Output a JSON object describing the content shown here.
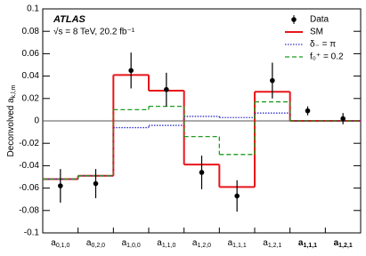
{
  "chart_data": {
    "type": "step",
    "ylabel": "Deconvolved a",
    "ylabel_sub": "k,l,m",
    "annotations": [
      "ATLAS",
      "√s = 8 TeV, 20.2 fb⁻¹"
    ],
    "categories": [
      "a0,1,0",
      "a0,2,0",
      "a1,0,0",
      "a1,1,0",
      "a1,2,0",
      "a1,1,1",
      "a1,2,1",
      "a1,1,1",
      "a1,2,1"
    ],
    "bold_categories": [
      7,
      8
    ],
    "ylim": [
      -0.1,
      0.1
    ],
    "yticks": [
      -0.1,
      -0.08,
      -0.06,
      -0.04,
      -0.02,
      0,
      0.02,
      0.04,
      0.06,
      0.08,
      0.1
    ],
    "series": [
      {
        "name": "Data",
        "color": "#000000",
        "style": "points",
        "values": [
          -0.058,
          -0.056,
          0.045,
          0.028,
          -0.046,
          -0.067,
          0.036,
          0.009,
          0.002
        ],
        "errors": [
          0.015,
          0.013,
          0.016,
          0.015,
          0.015,
          0.014,
          0.016,
          0.004,
          0.005
        ]
      },
      {
        "name": "SM",
        "color": "#e8151b",
        "style": "solid",
        "values": [
          -0.052,
          -0.049,
          0.041,
          0.027,
          -0.039,
          -0.059,
          0.026,
          0,
          0
        ]
      },
      {
        "name": "δ₋ = π",
        "color": "#3232c8",
        "style": "dotted",
        "values": [
          -0.052,
          -0.049,
          -0.006,
          -0.004,
          0.004,
          0.003,
          0.007,
          0,
          0
        ]
      },
      {
        "name": "f₀⁺ = 0.2",
        "color": "#1f9b1f",
        "style": "dashed",
        "values": [
          -0.052,
          -0.049,
          0.01,
          0.013,
          -0.014,
          -0.03,
          0.017,
          0,
          0
        ]
      }
    ]
  }
}
